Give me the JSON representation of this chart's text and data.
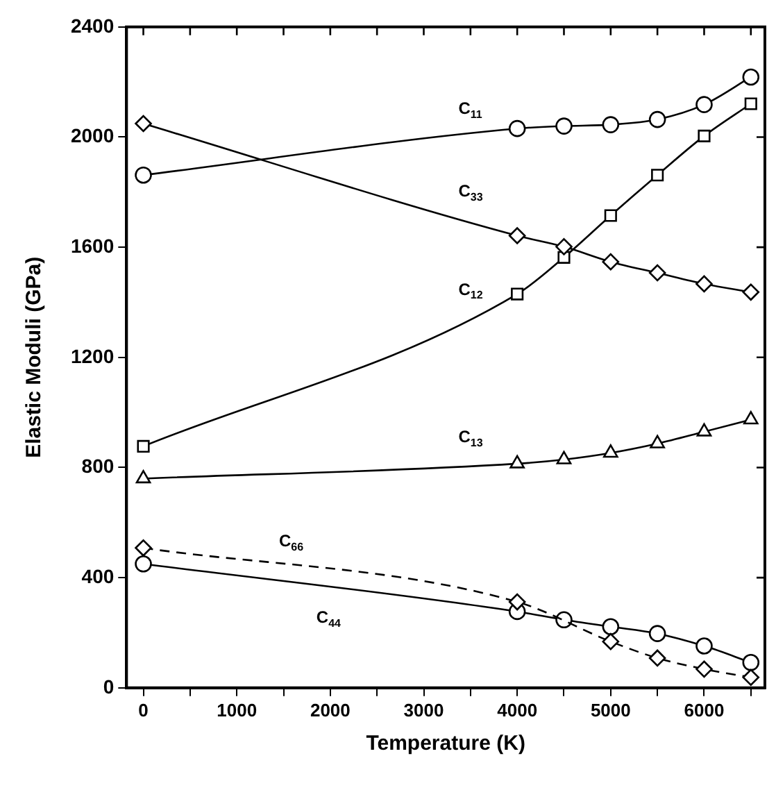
{
  "chart_data": {
    "type": "line",
    "xlabel": "Temperature (K)",
    "ylabel": "Elastic Moduli (GPa)",
    "x": [
      0,
      4000,
      4500,
      5000,
      5500,
      6000,
      6500
    ],
    "xlim": [
      -180,
      6650
    ],
    "xticks": [
      0,
      {
        "value": 500,
        "label": null
      },
      1000,
      {
        "value": 1500,
        "label": null
      },
      2000,
      {
        "value": 2500,
        "label": null
      },
      3000,
      {
        "value": 3500,
        "label": null
      },
      4000,
      {
        "value": 4500,
        "label": null
      },
      5000,
      {
        "value": 5500,
        "label": null
      },
      6000,
      {
        "value": 6500,
        "label": null
      }
    ],
    "ylim": [
      0,
      2400
    ],
    "yticks": [
      0,
      400,
      800,
      1200,
      1600,
      2000,
      2400
    ],
    "grid": false,
    "series": [
      {
        "name": "C$_{11}$",
        "color": "#000000",
        "marker": "circle",
        "line_style": "solid",
        "values": [
          1862,
          2031,
          2040,
          2045,
          2064,
          2118,
          2218
        ]
      },
      {
        "name": "C$_{33}$",
        "color": "#000000",
        "marker": "diamond",
        "line_style": "solid",
        "values": [
          2049,
          1642,
          1602,
          1547,
          1507,
          1467,
          1437
        ]
      },
      {
        "name": "C$_{12}$",
        "color": "#000000",
        "marker": "square",
        "line_style": "solid",
        "values": [
          877,
          1430,
          1563,
          1715,
          1862,
          2004,
          2121
        ]
      },
      {
        "name": "C$_{13}$",
        "color": "#000000",
        "marker": "triangle",
        "line_style": "solid",
        "values": [
          760,
          814,
          829,
          853,
          887,
          930,
          974
        ]
      },
      {
        "name": "C$_{66}$",
        "color": "#000000",
        "marker": "diamond",
        "line_style": "dashed",
        "values": [
          508,
          312,
          null,
          168,
          108,
          68,
          38
        ]
      },
      {
        "name": "C$_{44}$",
        "color": "#000000",
        "marker": "circle",
        "line_style": "solid",
        "values": [
          450,
          277,
          247,
          222,
          197,
          152,
          92
        ]
      }
    ]
  }
}
